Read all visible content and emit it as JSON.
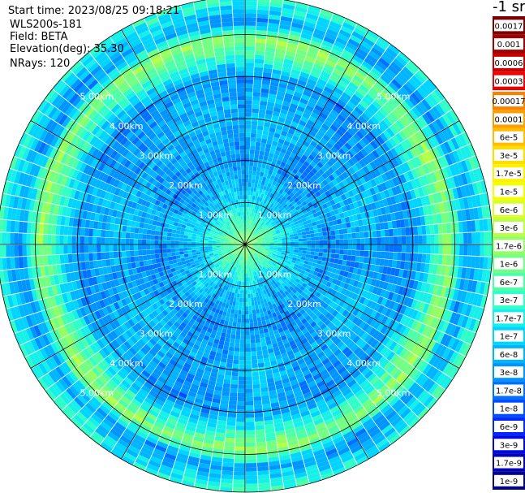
{
  "info": {
    "start_time": "Start time: 2023/08/25 09:18:21",
    "instrument": "WLS200s-181",
    "field": "Field: BETA",
    "elevation": "Elevation(deg): 35.30",
    "nrays": "NRays: 120"
  },
  "chart_data": {
    "type": "heatmap",
    "projection": "polar",
    "field": "BETA",
    "elevation_deg": 35.3,
    "n_rays": 120,
    "range_rings_km": [
      1,
      2,
      3,
      4,
      5
    ],
    "ring_labels": [
      "1.00km",
      "2.00km",
      "3.00km",
      "4.00km",
      "5.00km"
    ],
    "max_range_km": 5.9,
    "n_gates": 60,
    "colorbar_title": "-1 sr",
    "colorbar_upper_labels": [
      "0.0017",
      "0.001",
      "0.0006",
      "0.0003"
    ],
    "colorbar_labels": [
      "0.00017",
      "0.0001",
      "6e-5",
      "3e-5",
      "1.7e-5",
      "1e-5",
      "6e-6",
      "3e-6",
      "1.7e-6",
      "1e-6",
      "6e-7",
      "3e-7",
      "1.7e-7",
      "1e-7",
      "6e-8",
      "3e-8",
      "1.7e-8",
      "1e-8",
      "6e-9",
      "3e-9",
      "1.7e-9",
      "1e-9"
    ],
    "colorbar_upper_colors": [
      "#7a0000",
      "#a00000",
      "#c80000",
      "#f00000"
    ],
    "colorbar_colors": [
      "#ff7f00",
      "#ff9e00",
      "#ffbc00",
      "#ffdd00",
      "#fff200",
      "#f2ff00",
      "#d8ff29",
      "#b9ff45",
      "#94ff63",
      "#73ff84",
      "#4fffa8",
      "#30ffc8",
      "#17f0e8",
      "#00d4ff",
      "#00b4ff",
      "#0094ff",
      "#0070ff",
      "#004cff",
      "#0028ff",
      "#0008e0",
      "#0000b4",
      "#00008c"
    ],
    "range_profile": [
      {
        "range_km": 0.0,
        "value": "1.7e-6"
      },
      {
        "range_km": 1.0,
        "value": "1e-7"
      },
      {
        "range_km": 2.0,
        "value": "3e-8"
      },
      {
        "range_km": 3.0,
        "value": "6e-8"
      },
      {
        "range_km": 4.0,
        "value": "3e-8"
      },
      {
        "range_km": 4.9,
        "value": "1.7e-6"
      },
      {
        "range_km": 5.3,
        "value": "3e-8"
      },
      {
        "range_km": 5.9,
        "value": "3e-7"
      }
    ]
  }
}
